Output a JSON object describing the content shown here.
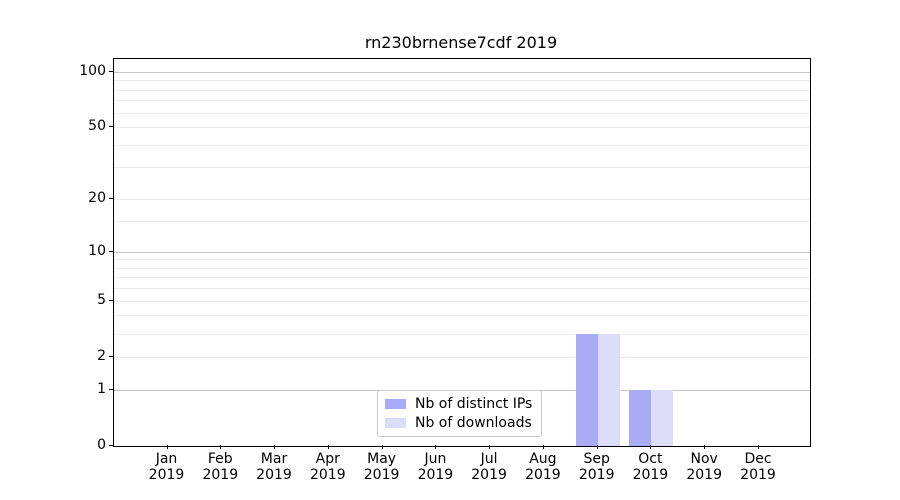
{
  "figure": {
    "background": "#ffffff"
  },
  "chart_data": {
    "type": "bar",
    "title": "rn230brnense7cdf 2019",
    "categories": [
      "Jan",
      "Feb",
      "Mar",
      "Apr",
      "May",
      "Jun",
      "Jul",
      "Aug",
      "Sep",
      "Oct",
      "Nov",
      "Dec"
    ],
    "category_year": "2019",
    "series": [
      {
        "name": "Nb of distinct IPs",
        "color": "#aaabf7",
        "values": [
          0,
          0,
          0,
          0,
          0,
          0,
          0,
          0,
          3,
          1,
          0,
          0
        ]
      },
      {
        "name": "Nb of downloads",
        "color": "#dcddf8",
        "values": [
          0,
          0,
          0,
          0,
          0,
          0,
          0,
          0,
          3,
          1,
          0,
          0
        ]
      }
    ],
    "xlabel": "",
    "ylabel": "",
    "y_axis": {
      "scale": "log1p",
      "lim": [
        0,
        117
      ],
      "tick_values": [
        0,
        1,
        2,
        5,
        10,
        20,
        50,
        100
      ],
      "tick_labels": [
        "0",
        "1",
        "2",
        "5",
        "10",
        "20",
        "50",
        "100"
      ],
      "major_gridline_values": [
        1,
        10,
        100
      ],
      "light_gridline_values": [
        2,
        5,
        20,
        50
      ],
      "minor_gridline_values": [
        3,
        4,
        6,
        7,
        8,
        9,
        15,
        30,
        40,
        60,
        70,
        80,
        90
      ]
    },
    "grid": true,
    "legend_position": "lower center",
    "colors": {
      "grid_major": "#c6c6c6",
      "grid_minor": "#ededed",
      "spine": "#000000",
      "text": "#000000"
    }
  }
}
